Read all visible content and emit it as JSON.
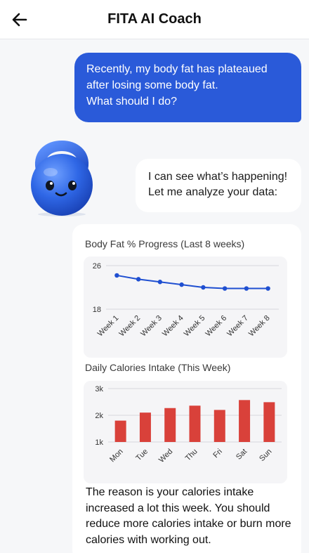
{
  "header": {
    "title": "FITA AI Coach",
    "back_icon": "arrow-left-icon"
  },
  "messages": {
    "user_lines": [
      "Recently, my body fat has plateaued",
      "after losing some body fat.",
      "What should I do?"
    ],
    "bot_lines": [
      "I can see what’s happening!",
      "Let me analyze your data:"
    ],
    "avatar_icon": "kettlebell-mascot-icon",
    "reason": "The reason is your calories intake increased a lot this week. You should reduce more calories intake or burn more calories with working out."
  },
  "colors": {
    "accent": "#2a5ad9",
    "line": "#1f4fd1",
    "bar": "#d9413a"
  },
  "chart_data": [
    {
      "type": "line",
      "title": "Body Fat % Progress (Last 8 weeks)",
      "categories": [
        "Week 1",
        "Week 2",
        "Week 3",
        "Week 4",
        "Week 5",
        "Week 6",
        "Week 7",
        "Week 8"
      ],
      "values": [
        24.2,
        23.5,
        23.0,
        22.5,
        22.0,
        21.8,
        21.8,
        21.8
      ],
      "ylim": [
        18,
        26
      ],
      "yticks": [
        "26",
        "18"
      ],
      "grid": true
    },
    {
      "type": "bar",
      "title": "Daily Calories Intake (This Week)",
      "categories": [
        "Mon",
        "Tue",
        "Wed",
        "Thu",
        "Fri",
        "Sat",
        "Sun"
      ],
      "values": [
        1800,
        2100,
        2270,
        2360,
        2200,
        2570,
        2490
      ],
      "ylim": [
        1000,
        3000
      ],
      "yticks": [
        "3k",
        "2k",
        "1k"
      ],
      "grid": true
    }
  ]
}
